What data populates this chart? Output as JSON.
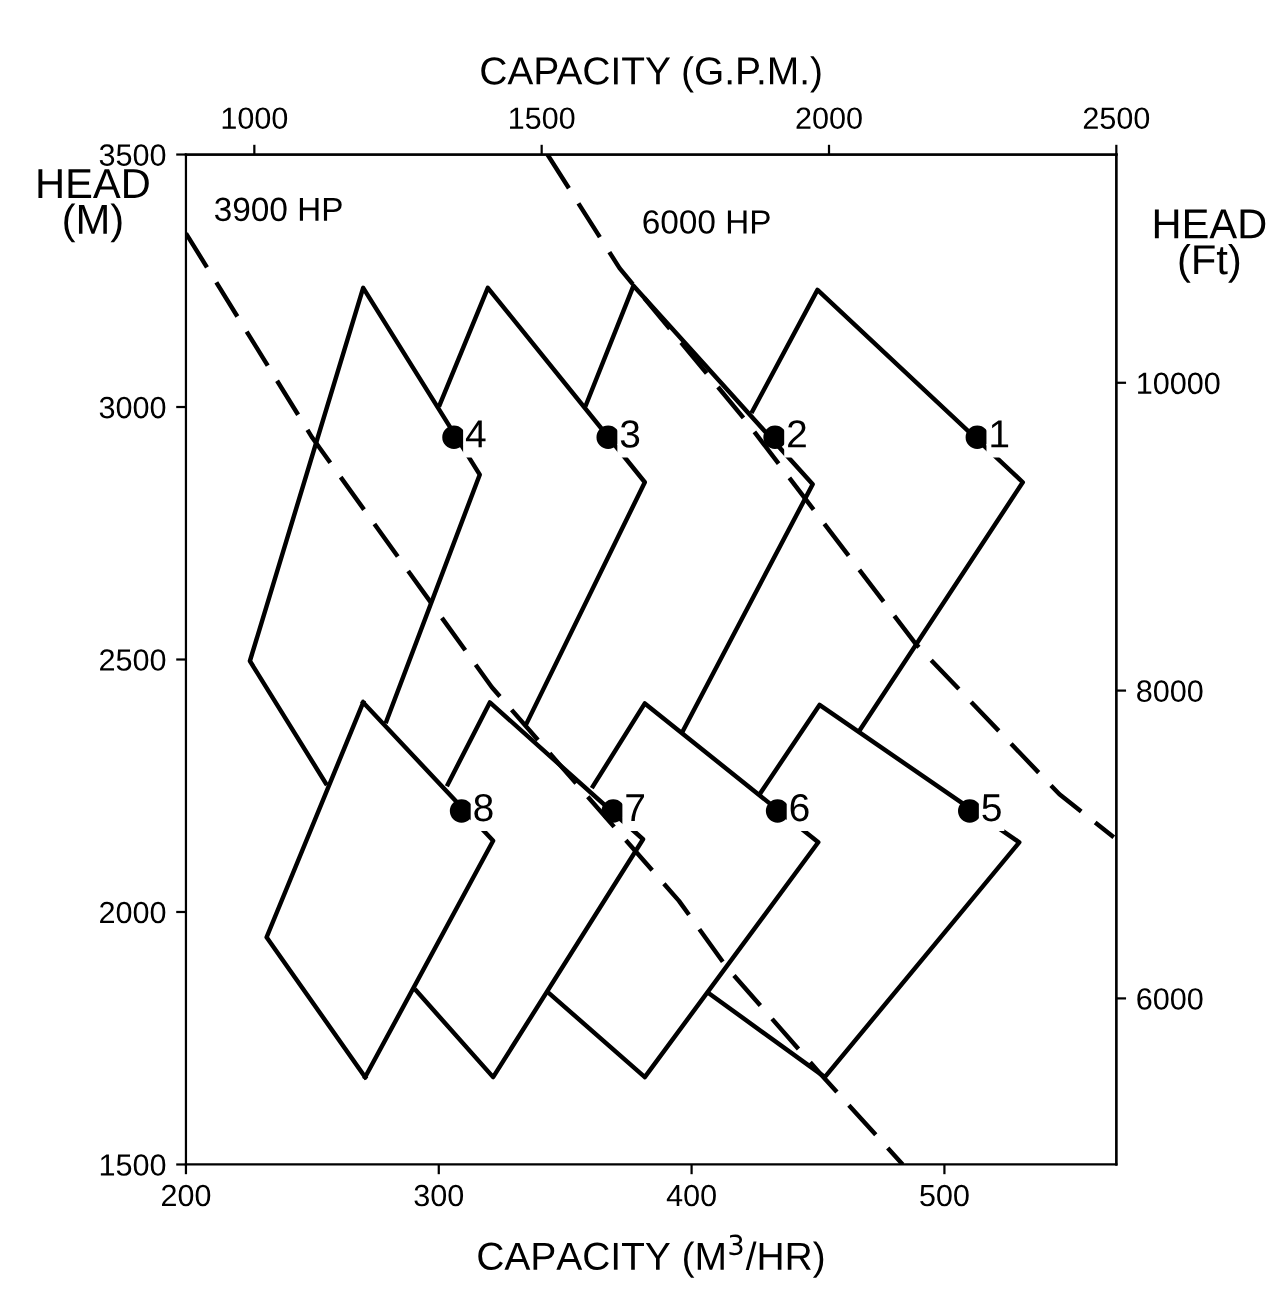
{
  "chart_data": {
    "type": "line",
    "xlabel": "CAPACITY (M$^{3}$/HR)",
    "x2label": "CAPACITY (G.P.M.)",
    "ylabel": "HEAD\n(M)",
    "y2label": "HEAD\n(Ft)",
    "xlim": [
      200,
      568
    ],
    "xticks": [
      200,
      300,
      400,
      500
    ],
    "x2lim": [
      881,
      2500
    ],
    "x2ticks": [
      1000,
      1500,
      2000,
      2500
    ],
    "ylim": [
      1500,
      3500
    ],
    "yticks": [
      1500,
      2000,
      2500,
      3000,
      3500
    ],
    "y2lim": [
      4921,
      11483
    ],
    "y2ticks": [
      6000,
      8000,
      10000
    ],
    "grid": false,
    "legend": false,
    "series": [
      {
        "name": "3900 HP",
        "color": "#000000",
        "line_style": "dashed",
        "x": [
          200,
          250,
          321,
          395,
          414,
          451,
          483.5
        ],
        "values": [
          3344,
          2939,
          2445,
          2022,
          1890,
          1679,
          1500
        ]
      },
      {
        "name": "6000 HP",
        "color": "#000000",
        "line_style": "dashed",
        "x": [
          343,
          371.5,
          421.6,
          488.8,
          545.5,
          567
        ],
        "values": [
          3500,
          3275,
          2972,
          2530,
          2233,
          2148
        ]
      },
      {
        "color": "#000000",
        "x": [
          270.1,
          321.5,
          270.9
        ],
        "values": [
          2415,
          2141,
          1673
        ]
      },
      {
        "color": "#000000",
        "x": [
          270.9,
          231.9,
          270.1
        ],
        "values": [
          1673,
          1950,
          2415
        ]
      },
      {
        "color": "#000000",
        "x": [
          303.6,
          320.2,
          380.8,
          321.5,
          291.1
        ],
        "values": [
          2253,
          2415,
          2144,
          1673,
          1844
        ]
      },
      {
        "color": "#000000",
        "x": [
          361,
          381.5,
          450.1,
          381.5,
          343.9
        ],
        "values": [
          2249,
          2413,
          2138,
          1673,
          1838
        ]
      },
      {
        "color": "#000000",
        "x": [
          426.9,
          450.6,
          529.6,
          452.7,
          407.1
        ],
        "values": [
          2233,
          2410,
          2138,
          1673,
          1838
        ]
      },
      {
        "color": "#000000",
        "x": [
          255.3,
          225.3,
          270.1,
          316.2,
          279.3
        ],
        "values": [
          2255,
          2497,
          3236,
          2866,
          2378
        ]
      },
      {
        "color": "#000000",
        "x": [
          300.4,
          319.4,
          381.5,
          334.6
        ],
        "values": [
          3005,
          3236,
          2851,
          2372
        ]
      },
      {
        "color": "#000000",
        "x": [
          358.3,
          377,
          447.9,
          396.6
        ],
        "values": [
          3005,
          3240,
          2847,
          2359
        ]
      },
      {
        "color": "#000000",
        "x": [
          424.1,
          449.8,
          531,
          466.4
        ],
        "values": [
          2992,
          3232,
          2851,
          2359
        ]
      },
      {
        "type": "scatter",
        "color": "#000000",
        "marker": "circle",
        "x": [
          513,
          433,
          367,
          306,
          510,
          434,
          369,
          309
        ],
        "values": [
          2940,
          2940,
          2940,
          2940,
          2200,
          2200,
          2200,
          2200
        ]
      }
    ],
    "annotations": [
      {
        "text": "1",
        "x": 513,
        "y": 2940
      },
      {
        "text": "2",
        "x": 433,
        "y": 2940
      },
      {
        "text": "3",
        "x": 367,
        "y": 2940
      },
      {
        "text": "4",
        "x": 306,
        "y": 2940
      },
      {
        "text": "5",
        "x": 510,
        "y": 2200
      },
      {
        "text": "6",
        "x": 434,
        "y": 2200
      },
      {
        "text": "7",
        "x": 369,
        "y": 2200
      },
      {
        "text": "8",
        "x": 309,
        "y": 2200
      }
    ]
  }
}
